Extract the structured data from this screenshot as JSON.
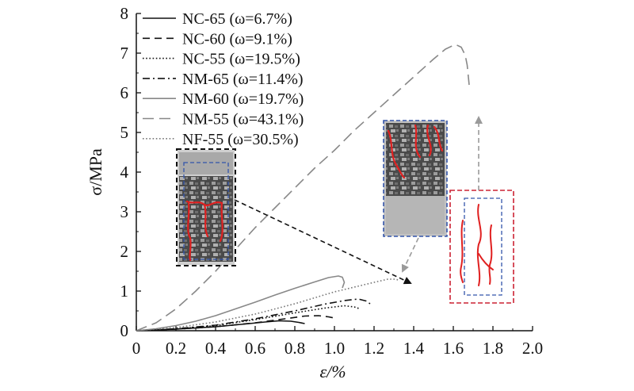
{
  "chart_data": {
    "type": "line",
    "title": "",
    "xlabel": "ε/%",
    "ylabel": "σ/MPa",
    "xlim": [
      0,
      2.0
    ],
    "ylim": [
      0,
      8
    ],
    "x_ticks": [
      "0",
      "0.2",
      "0.4",
      "0.6",
      "0.8",
      "1.0",
      "1.2",
      "1.4",
      "1.6",
      "1.8",
      "2.0"
    ],
    "y_ticks": [
      "0",
      "1",
      "2",
      "3",
      "4",
      "5",
      "6",
      "7",
      "8"
    ],
    "legend_position": "top-left",
    "series": [
      {
        "name": "NC-65",
        "omega": "6.7%",
        "label": "NC-65 (ω=6.7%)",
        "style": "solid",
        "color": "#111111",
        "x": [
          0,
          0.2,
          0.4,
          0.55,
          0.65,
          0.72,
          0.78,
          0.82,
          0.85
        ],
        "y": [
          0,
          0.04,
          0.1,
          0.17,
          0.22,
          0.25,
          0.24,
          0.21,
          0.18
        ]
      },
      {
        "name": "NC-60",
        "omega": "9.1%",
        "label": "NC-60 (ω=9.1%)",
        "style": "dashed",
        "color": "#111111",
        "x": [
          0,
          0.2,
          0.4,
          0.6,
          0.75,
          0.85,
          0.92,
          0.97,
          1.0
        ],
        "y": [
          0,
          0.04,
          0.1,
          0.2,
          0.3,
          0.37,
          0.38,
          0.35,
          0.32
        ]
      },
      {
        "name": "NC-55",
        "omega": "19.5%",
        "label": "NC-55 (ω=19.5%)",
        "style": "dotted",
        "color": "#111111",
        "x": [
          0,
          0.2,
          0.4,
          0.6,
          0.8,
          0.95,
          1.05,
          1.1,
          1.13
        ],
        "y": [
          0,
          0.05,
          0.13,
          0.28,
          0.45,
          0.57,
          0.63,
          0.6,
          0.55
        ]
      },
      {
        "name": "NM-65",
        "omega": "11.4%",
        "label": "NM-65 (ω=11.4%)",
        "style": "dashdot",
        "color": "#111111",
        "x": [
          0,
          0.2,
          0.4,
          0.6,
          0.8,
          0.95,
          1.05,
          1.12,
          1.16,
          1.18
        ],
        "y": [
          0,
          0.05,
          0.14,
          0.3,
          0.5,
          0.67,
          0.76,
          0.8,
          0.75,
          0.68
        ]
      },
      {
        "name": "NM-60",
        "omega": "19.7%",
        "label": "NM-60 (ω=19.7%)",
        "style": "solid",
        "color": "#888888",
        "x": [
          0,
          0.1,
          0.2,
          0.3,
          0.4,
          0.5,
          0.6,
          0.7,
          0.8,
          0.9,
          0.97,
          1.02,
          1.04,
          1.05,
          1.04
        ],
        "y": [
          0,
          0.05,
          0.13,
          0.24,
          0.38,
          0.55,
          0.72,
          0.9,
          1.07,
          1.23,
          1.34,
          1.38,
          1.35,
          1.22,
          1.08
        ]
      },
      {
        "name": "NM-55",
        "omega": "43.1%",
        "label": "NM-55 (ω=43.1%)",
        "style": "longdash",
        "color": "#888888",
        "x": [
          0,
          0.1,
          0.2,
          0.3,
          0.4,
          0.5,
          0.6,
          0.7,
          0.8,
          0.9,
          1.0,
          1.1,
          1.2,
          1.3,
          1.4,
          1.5,
          1.56,
          1.61,
          1.64,
          1.66,
          1.67,
          1.68
        ],
        "y": [
          0,
          0.2,
          0.55,
          1.0,
          1.5,
          2.05,
          2.6,
          3.1,
          3.6,
          4.1,
          4.55,
          5.05,
          5.5,
          5.95,
          6.4,
          6.85,
          7.1,
          7.22,
          7.15,
          6.95,
          6.7,
          6.2
        ]
      },
      {
        "name": "NF-55",
        "omega": "30.5%",
        "label": "NF-55 (ω=30.5%)",
        "style": "dotted",
        "color": "#777777",
        "x": [
          0,
          0.2,
          0.4,
          0.6,
          0.8,
          1.0,
          1.1,
          1.2,
          1.27,
          1.31,
          1.33
        ],
        "y": [
          0,
          0.08,
          0.22,
          0.42,
          0.68,
          0.98,
          1.1,
          1.22,
          1.3,
          1.3,
          1.26
        ]
      }
    ]
  },
  "insets": [
    {
      "name": "specimen-photo-nm-60",
      "frame": "black-dashed"
    },
    {
      "name": "specimen-photo-nm-55",
      "frame": "blue-dashed"
    },
    {
      "name": "crack-sketch-nf-55",
      "frame": "red-dashed"
    }
  ],
  "colors": {
    "axis": "#111111",
    "crack": "#e02020",
    "blue_frame": "#3355aa",
    "red_frame": "#cc2233",
    "photo_dark": "#3c3c3c",
    "photo_light": "#b4b4b4",
    "arrow_gray": "#9a9a9a"
  }
}
